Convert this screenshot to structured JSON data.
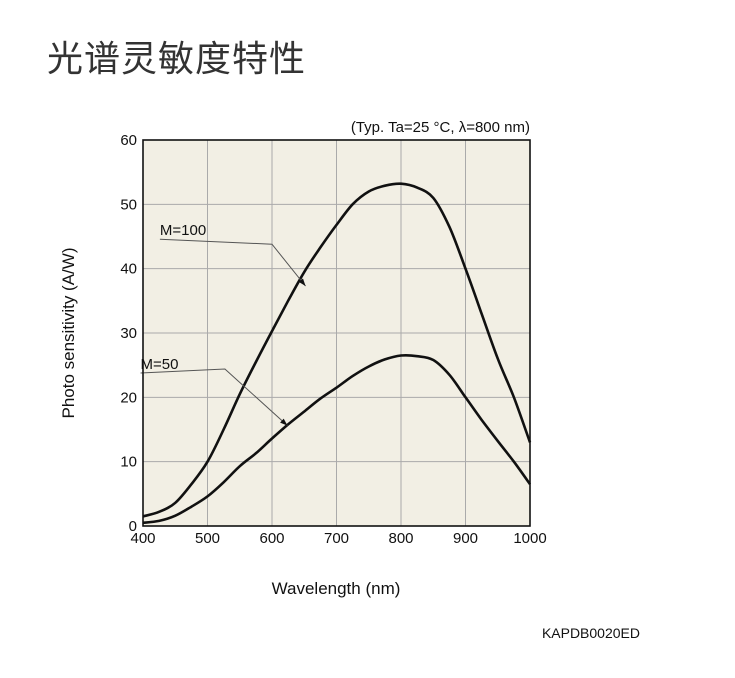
{
  "page": {
    "title": "光谱灵敏度特性",
    "figure_code": "KAPDB0020ED"
  },
  "chart_data": {
    "type": "line",
    "title": "",
    "condition_note": "(Typ. Ta=25 °C, λ=800 nm)",
    "xlabel": "Wavelength (nm)",
    "ylabel": "Photo sensitivity (A/W)",
    "xlim": [
      400,
      1000
    ],
    "ylim": [
      0,
      60
    ],
    "x_ticks": [
      400,
      500,
      600,
      700,
      800,
      900,
      1000
    ],
    "y_ticks": [
      0,
      10,
      20,
      30,
      40,
      50,
      60
    ],
    "grid": true,
    "background": "#f2efe4",
    "line_color": "#111111",
    "series": [
      {
        "name": "M=100",
        "x": [
          400,
          425,
          450,
          475,
          500,
          525,
          550,
          575,
          600,
          625,
          650,
          675,
          700,
          725,
          750,
          775,
          800,
          825,
          850,
          875,
          900,
          925,
          950,
          975,
          1000
        ],
        "values": [
          1.5,
          2.2,
          3.6,
          6.5,
          10.0,
          15.0,
          20.5,
          25.5,
          30.3,
          35.0,
          39.5,
          43.3,
          46.8,
          50.0,
          52.0,
          52.9,
          53.2,
          52.6,
          51.0,
          46.5,
          40.0,
          33.0,
          26.0,
          20.0,
          13.0
        ]
      },
      {
        "name": "M=50",
        "x": [
          400,
          425,
          450,
          475,
          500,
          525,
          550,
          575,
          600,
          625,
          650,
          675,
          700,
          725,
          750,
          775,
          800,
          825,
          850,
          875,
          900,
          925,
          950,
          975,
          1000
        ],
        "values": [
          0.5,
          0.8,
          1.6,
          3.0,
          4.6,
          6.8,
          9.3,
          11.3,
          13.6,
          15.8,
          17.8,
          19.8,
          21.5,
          23.3,
          24.8,
          25.9,
          26.5,
          26.4,
          25.8,
          23.5,
          20.0,
          16.5,
          13.2,
          10.0,
          6.5
        ]
      }
    ],
    "annotations": [
      {
        "text": "M=100",
        "series": "M=100"
      },
      {
        "text": "M=50",
        "series": "M=50"
      }
    ]
  }
}
